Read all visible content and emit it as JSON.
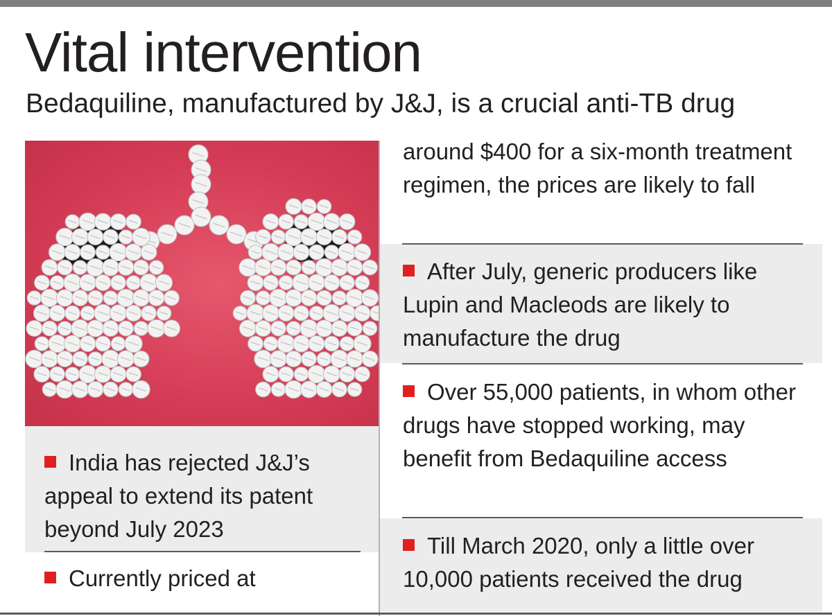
{
  "title": "Vital intervention",
  "subtitle": "Bedaquiline, manufactured by J&J, is a crucial anti-TB drug",
  "photo": {
    "icon": "pills-lungs-photo",
    "colors": {
      "background": "#d43c55",
      "pill": "#f2f2f2",
      "shadow": "#1a1a1a"
    }
  },
  "left_column": {
    "items": [
      {
        "text": "India has rejected J&J’s appeal to extend its patent beyond July 2023"
      },
      {
        "text": "Currently priced at"
      }
    ]
  },
  "right_column": {
    "continuation": "around $400 for a six-month treatment regimen, the prices are likely to fall",
    "items": [
      {
        "text": "After July, generic producers like Lupin and Macleods are likely to manufacture the drug"
      },
      {
        "text": "Over 55,000 patients, in whom other drugs have stopped working, may benefit from Bedaquiline access"
      },
      {
        "text": "Till March 2020, only a little over 10,000 patients received the drug"
      }
    ]
  },
  "colors": {
    "bullet": "#e02020",
    "shade": "#ececec",
    "rule": "#5a5a5a",
    "text": "#231f20"
  }
}
